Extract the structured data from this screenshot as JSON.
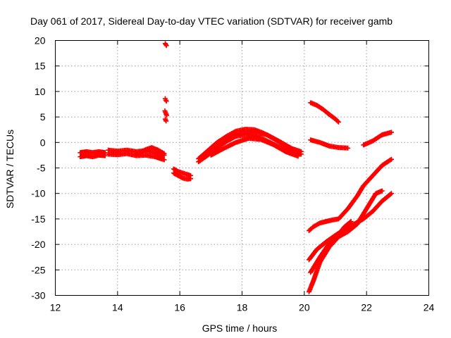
{
  "chart_data": {
    "type": "scatter",
    "title": "Day 061 of 2017, Sidereal Day-to-day VTEC variation (SDTVAR) for receiver gamb",
    "xlabel": "GPS time / hours",
    "ylabel": "SDTVAR / TECUs",
    "xlim": [
      12,
      24
    ],
    "ylim": [
      -30,
      20
    ],
    "xticks": [
      12,
      14,
      16,
      18,
      20,
      22,
      24
    ],
    "yticks": [
      -30,
      -25,
      -20,
      -15,
      -10,
      -5,
      0,
      5,
      10,
      15,
      20
    ],
    "grid": true,
    "marker": "plus",
    "color": "#ff0000",
    "series": [
      {
        "x": [
          12.8,
          13.0,
          13.2,
          13.4,
          13.6
        ],
        "y": [
          -2.0,
          -1.8,
          -2.0,
          -1.8,
          -2.0
        ]
      },
      {
        "x": [
          12.8,
          13.0,
          13.2,
          13.4,
          13.6
        ],
        "y": [
          -2.8,
          -2.6,
          -2.8,
          -2.5,
          -2.6
        ]
      },
      {
        "x": [
          13.7,
          14.0,
          14.3,
          14.6,
          14.9,
          15.2,
          15.5
        ],
        "y": [
          -1.5,
          -1.7,
          -1.5,
          -1.8,
          -1.6,
          -2.0,
          -2.5
        ]
      },
      {
        "x": [
          13.7,
          14.0,
          14.3,
          14.6,
          14.9,
          15.2,
          15.5
        ],
        "y": [
          -2.3,
          -2.4,
          -2.2,
          -2.6,
          -2.5,
          -2.8,
          -3.4
        ]
      },
      {
        "x": [
          14.6,
          14.9,
          15.1,
          15.3,
          15.5
        ],
        "y": [
          -2.4,
          -1.4,
          -1.0,
          -1.5,
          -2.2
        ]
      },
      {
        "x": [
          15.53,
          15.55,
          15.57
        ],
        "y": [
          19.4,
          19.2,
          19.0
        ]
      },
      {
        "x": [
          15.53,
          15.55,
          15.57
        ],
        "y": [
          8.6,
          8.3,
          8.1
        ]
      },
      {
        "x": [
          15.52,
          15.55,
          15.58
        ],
        "y": [
          6.2,
          5.7,
          5.3
        ]
      },
      {
        "x": [
          15.53,
          15.56
        ],
        "y": [
          4.6,
          4.2
        ]
      },
      {
        "x": [
          15.8,
          15.95,
          16.1,
          16.25,
          16.35
        ],
        "y": [
          -5.2,
          -5.7,
          -6.0,
          -6.3,
          -6.5
        ]
      },
      {
        "x": [
          15.8,
          15.95,
          16.1,
          16.25,
          16.35
        ],
        "y": [
          -6.0,
          -6.5,
          -7.0,
          -7.2,
          -7.1
        ]
      },
      {
        "x": [
          16.6,
          16.9,
          17.2,
          17.5,
          17.8,
          18.1,
          18.4,
          18.7,
          19.0,
          19.3,
          19.6,
          19.9
        ],
        "y": [
          -3.8,
          -2.5,
          -1.0,
          0.2,
          1.2,
          1.5,
          1.3,
          0.6,
          -0.3,
          -1.2,
          -2.0,
          -2.3
        ]
      },
      {
        "x": [
          16.6,
          16.9,
          17.2,
          17.5,
          17.8,
          18.1,
          18.4,
          18.7,
          19.0,
          19.3,
          19.6,
          19.9
        ],
        "y": [
          -3.2,
          -1.6,
          0.0,
          1.2,
          2.2,
          2.6,
          2.5,
          1.8,
          0.8,
          -0.3,
          -1.2,
          -1.8
        ]
      },
      {
        "x": [
          17.0,
          17.4,
          17.8,
          18.2,
          18.6,
          19.0,
          19.4,
          19.8
        ],
        "y": [
          -2.5,
          -1.2,
          0.0,
          0.8,
          0.6,
          -0.4,
          -1.8,
          -2.7
        ]
      },
      {
        "x": [
          17.2,
          17.6,
          18.0,
          18.4,
          18.8,
          19.2,
          19.6
        ],
        "y": [
          -0.5,
          0.8,
          1.8,
          2.0,
          1.5,
          0.2,
          -1.2
        ]
      },
      {
        "x": [
          20.2,
          20.4,
          20.6,
          20.8,
          21.0,
          21.1
        ],
        "y": [
          7.8,
          7.3,
          6.5,
          5.5,
          4.6,
          4.0
        ]
      },
      {
        "x": [
          20.2,
          20.5,
          20.8,
          21.1,
          21.4
        ],
        "y": [
          0.5,
          0.0,
          -0.7,
          -1.0,
          -1.1
        ]
      },
      {
        "x": [
          21.9,
          22.2,
          22.5,
          22.8
        ],
        "y": [
          -0.5,
          0.3,
          1.5,
          2.0
        ]
      },
      {
        "x": [
          20.15,
          20.3,
          20.5,
          20.7,
          20.9,
          21.1,
          21.4,
          21.7,
          21.9,
          22.2,
          22.5,
          22.8
        ],
        "y": [
          -17.3,
          -16.5,
          -15.8,
          -15.5,
          -15.2,
          -15.0,
          -13.0,
          -10.5,
          -8.5,
          -6.5,
          -4.5,
          -3.3
        ]
      },
      {
        "x": [
          20.15,
          20.4,
          20.7,
          21.0,
          21.3,
          21.6,
          21.9,
          22.2,
          22.5,
          22.8
        ],
        "y": [
          -23.0,
          -21.0,
          -19.5,
          -18.2,
          -17.0,
          -16.0,
          -15.0,
          -13.5,
          -11.5,
          -10.0
        ]
      },
      {
        "x": [
          20.15,
          20.3,
          20.5,
          20.8,
          21.1,
          21.4,
          21.7,
          22.0,
          22.3,
          22.5
        ],
        "y": [
          -29.3,
          -27.0,
          -23.5,
          -20.5,
          -18.5,
          -17.5,
          -16.0,
          -13.0,
          -10.0,
          -9.5
        ]
      },
      {
        "x": [
          20.2,
          20.5,
          20.8,
          21.1,
          21.3,
          21.5
        ],
        "y": [
          -25.5,
          -22.5,
          -19.8,
          -18.0,
          -16.5,
          -15.5
        ]
      }
    ]
  }
}
